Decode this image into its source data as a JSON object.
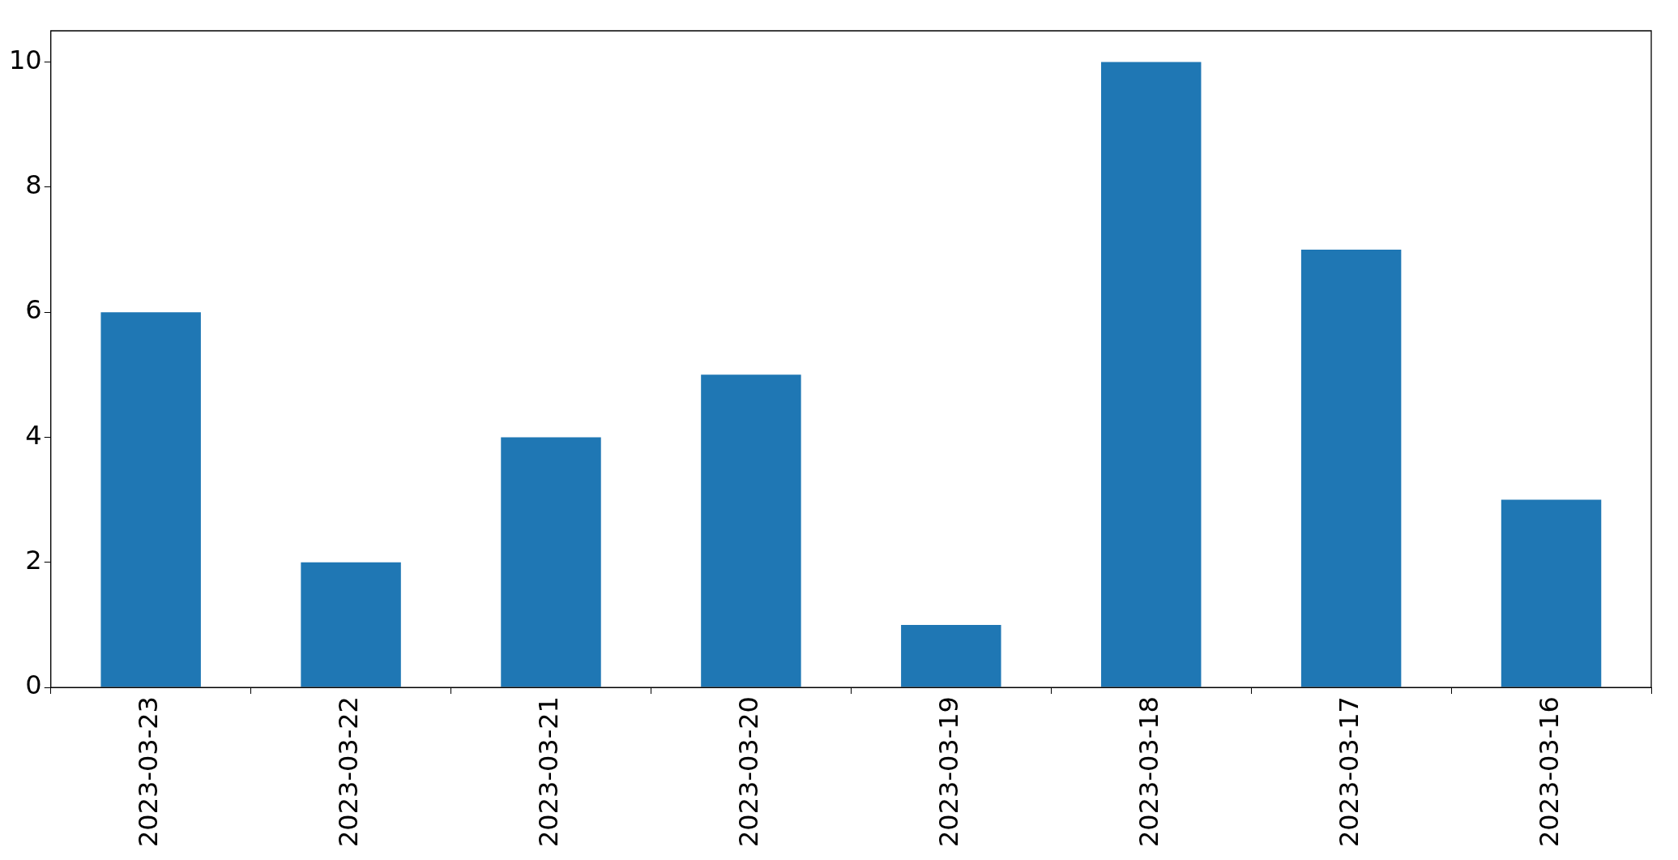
{
  "chart_data": {
    "type": "bar",
    "categories": [
      "2023-03-23",
      "2023-03-22",
      "2023-03-21",
      "2023-03-20",
      "2023-03-19",
      "2023-03-18",
      "2023-03-17",
      "2023-03-16"
    ],
    "values": [
      6,
      2,
      4,
      5,
      1,
      10,
      7,
      3
    ],
    "color": "#1f77b4",
    "ylim": [
      0,
      10.5
    ],
    "yticks": [
      0,
      2,
      4,
      6,
      8,
      10
    ],
    "grid": false,
    "legend": false
  }
}
